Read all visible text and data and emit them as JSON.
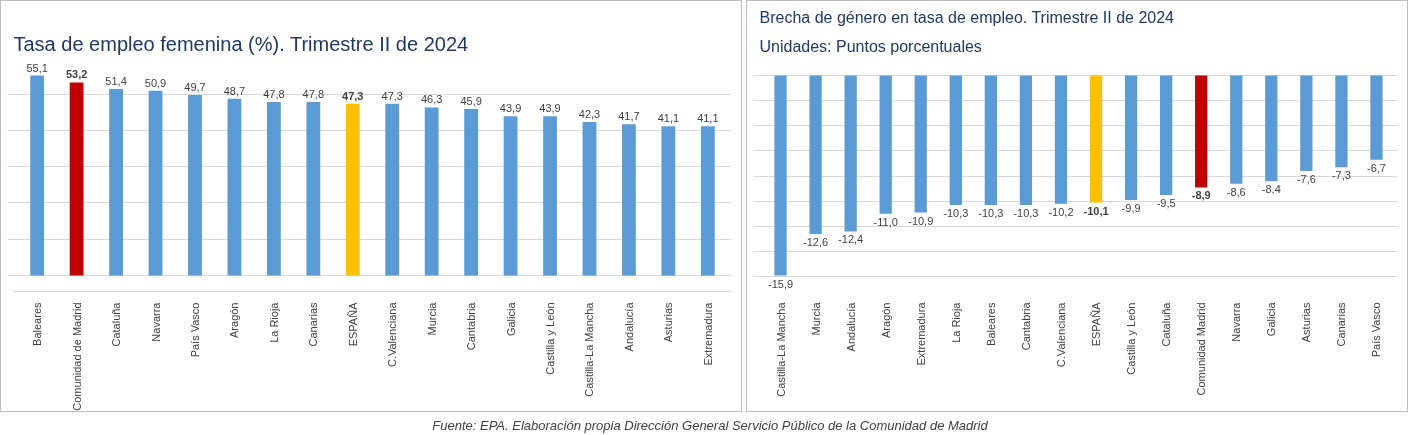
{
  "chart_data": [
    {
      "type": "bar",
      "title": "Tasa de empleo femenina (%). Trimestre II de 2024",
      "categories": [
        "Baleares",
        "Comunidad de Madrid",
        "Cataluña",
        "Navarra",
        "País Vasco",
        "Aragón",
        "La Rioja",
        "Canarias",
        "ESPAÑA",
        "C.Valenciana",
        "Murcia",
        "Cantabria",
        "Galicia",
        "Castilla y León",
        "Castilla-La Mancha",
        "Andalucía",
        "Asturias",
        "Extremadura"
      ],
      "values": [
        55.1,
        53.2,
        51.4,
        50.9,
        49.7,
        48.7,
        47.8,
        47.8,
        47.3,
        47.3,
        46.3,
        45.9,
        43.9,
        43.9,
        42.3,
        41.7,
        41.1,
        41.1
      ],
      "value_labels": [
        "55,1",
        "53,2",
        "51,4",
        "50,9",
        "49,7",
        "48,7",
        "47,8",
        "47,8",
        "47,3",
        "47,3",
        "46,3",
        "45,9",
        "43,9",
        "43,9",
        "42,3",
        "41,7",
        "41,1",
        "41,1"
      ],
      "colors": [
        "#5b9bd5",
        "#c00000",
        "#5b9bd5",
        "#5b9bd5",
        "#5b9bd5",
        "#5b9bd5",
        "#5b9bd5",
        "#5b9bd5",
        "#ffc000",
        "#5b9bd5",
        "#5b9bd5",
        "#5b9bd5",
        "#5b9bd5",
        "#5b9bd5",
        "#5b9bd5",
        "#5b9bd5",
        "#5b9bd5",
        "#5b9bd5"
      ],
      "grid": "y",
      "tick_labels": "x",
      "annotations": [
        "Fuente: EPA. Elaboración propia Dirección General Servicio Público de la Comunidad de Madrid"
      ]
    },
    {
      "type": "bar",
      "title": "Brecha de género en tasa de empleo. Trimestre II de 2024",
      "subtitle": "Unidades: Puntos porcentuales",
      "categories": [
        "Castilla-La Mancha",
        "Murcia",
        "Andalucía",
        "Aragón",
        "Extremadura",
        "La Rioja",
        "Baleares",
        "Cantabria",
        "C.Valenciana",
        "ESPAÑA",
        "Castilla y León",
        "Cataluña",
        "Comunidad Madrid",
        "Navarra",
        "Galicia",
        "Asturias",
        "Canarias",
        "País Vasco"
      ],
      "values": [
        -15.9,
        -12.6,
        -12.4,
        -11.0,
        -10.9,
        -10.3,
        -10.3,
        -10.3,
        -10.2,
        -10.1,
        -9.9,
        -9.5,
        -8.9,
        -8.6,
        -8.4,
        -7.6,
        -7.3,
        -6.7
      ],
      "value_labels": [
        "-15,9",
        "-12,6",
        "-12,4",
        "-11,0",
        "-10,9",
        "-10,3",
        "-10,3",
        "-10,3",
        "-10,2",
        "-10,1",
        "-9,9",
        "-9,5",
        "-8,9",
        "-8,6",
        "-8,4",
        "-7,6",
        "-7,3",
        "-6,7"
      ],
      "colors": [
        "#5b9bd5",
        "#5b9bd5",
        "#5b9bd5",
        "#5b9bd5",
        "#5b9bd5",
        "#5b9bd5",
        "#5b9bd5",
        "#5b9bd5",
        "#5b9bd5",
        "#ffc000",
        "#5b9bd5",
        "#5b9bd5",
        "#c00000",
        "#5b9bd5",
        "#5b9bd5",
        "#5b9bd5",
        "#5b9bd5",
        "#5b9bd5"
      ],
      "grid": "y",
      "tick_labels": "x"
    }
  ]
}
